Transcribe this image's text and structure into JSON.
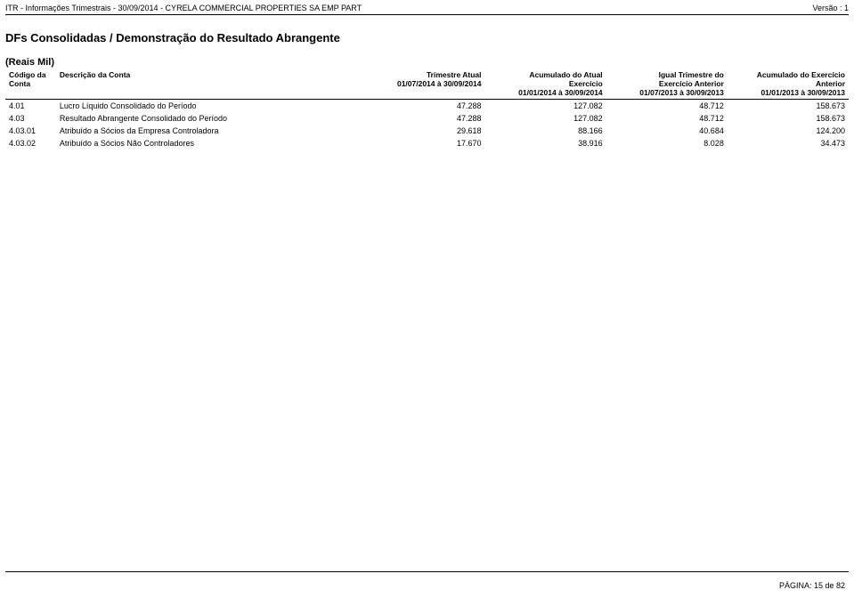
{
  "header": {
    "left": "ITR - Informações Trimestrais - 30/09/2014 - CYRELA COMMERCIAL PROPERTIES SA EMP PART",
    "right": "Versão : 1"
  },
  "section_title": "DFs Consolidadas / Demonstração do Resultado Abrangente",
  "unit_label": "(Reais Mil)",
  "table": {
    "columns": {
      "code": {
        "l1": "Código da",
        "l2": "Conta",
        "l3": ""
      },
      "desc": {
        "l1": "Descrição da Conta",
        "l2": "",
        "l3": ""
      },
      "c1": {
        "l1": "Trimestre Atual",
        "l2": "01/07/2014 à 30/09/2014",
        "l3": ""
      },
      "c2": {
        "l1": "Acumulado do Atual",
        "l2": "Exercício",
        "l3": "01/01/2014 à 30/09/2014"
      },
      "c3": {
        "l1": "Igual Trimestre do",
        "l2": "Exercício Anterior",
        "l3": "01/07/2013 à 30/09/2013"
      },
      "c4": {
        "l1": "Acumulado do Exercício",
        "l2": "Anterior",
        "l3": "01/01/2013 à 30/09/2013"
      }
    },
    "rows": [
      {
        "code": "4.01",
        "desc": "Lucro Líquido Consolidado do Período",
        "v": [
          "47.288",
          "127.082",
          "48.712",
          "158.673"
        ]
      },
      {
        "code": "4.03",
        "desc": "Resultado Abrangente Consolidado do Período",
        "v": [
          "47.288",
          "127.082",
          "48.712",
          "158.673"
        ]
      },
      {
        "code": "4.03.01",
        "desc": "Atribuído a Sócios da Empresa Controladora",
        "v": [
          "29.618",
          "88.166",
          "40.684",
          "124.200"
        ]
      },
      {
        "code": "4.03.02",
        "desc": "Atribuído a Sócios Não Controladores",
        "v": [
          "17.670",
          "38.916",
          "8.028",
          "34.473"
        ]
      }
    ]
  },
  "footer": "PÁGINA: 15 de 82",
  "colors": {
    "text": "#000000",
    "background": "#ffffff",
    "rule": "#000000"
  }
}
